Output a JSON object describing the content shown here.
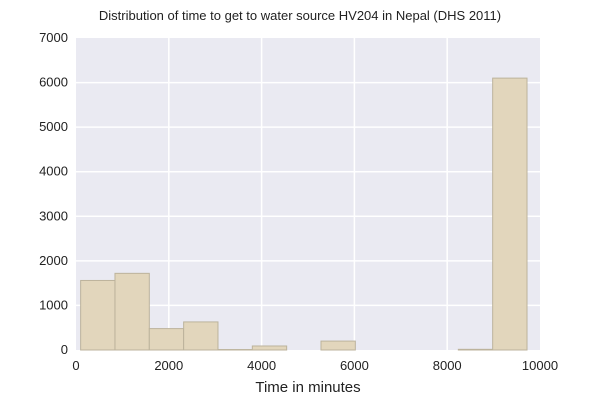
{
  "chart_data": {
    "type": "histogram",
    "title": "Distribution of time to get to water source HV204 in Nepal (DHS 2011)",
    "xlabel": "Time in minutes",
    "ylabel": "",
    "xlim": [
      0,
      10000
    ],
    "ylim": [
      0,
      7000
    ],
    "x_ticks": [
      0,
      2000,
      4000,
      6000,
      8000,
      10000
    ],
    "y_ticks": [
      0,
      1000,
      2000,
      3000,
      4000,
      5000,
      6000,
      7000
    ],
    "grid": true,
    "bins": [
      {
        "start": 100,
        "end": 840,
        "count": 1560
      },
      {
        "start": 840,
        "end": 1580,
        "count": 1720
      },
      {
        "start": 1580,
        "end": 2320,
        "count": 480
      },
      {
        "start": 2320,
        "end": 3060,
        "count": 630
      },
      {
        "start": 3060,
        "end": 3800,
        "count": 10
      },
      {
        "start": 3800,
        "end": 4540,
        "count": 90
      },
      {
        "start": 4540,
        "end": 5280,
        "count": 0
      },
      {
        "start": 5280,
        "end": 6020,
        "count": 200
      },
      {
        "start": 6020,
        "end": 6760,
        "count": 0
      },
      {
        "start": 6760,
        "end": 7500,
        "count": 0
      },
      {
        "start": 7500,
        "end": 8240,
        "count": 0
      },
      {
        "start": 8240,
        "end": 8980,
        "count": 15
      },
      {
        "start": 8980,
        "end": 9720,
        "count": 6100
      }
    ],
    "colors": {
      "plot_background": "#eaeaf2",
      "grid": "#ffffff",
      "bar_fill": "#e2d6bc",
      "bar_edge": "#bcb39c"
    }
  }
}
